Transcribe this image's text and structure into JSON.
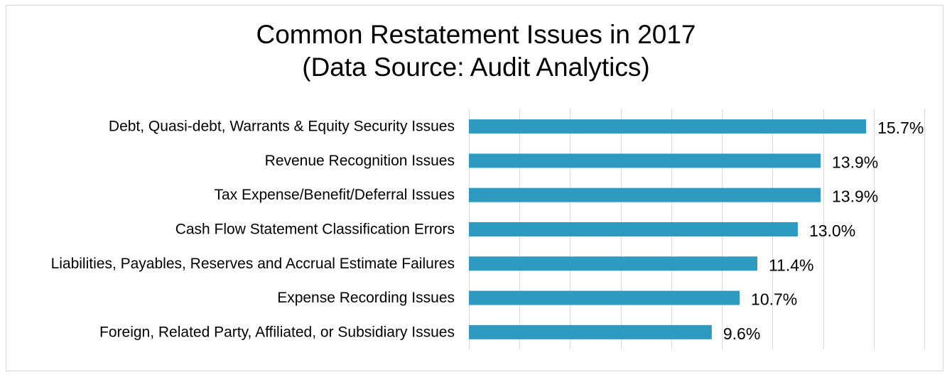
{
  "chart_data": {
    "type": "bar",
    "orientation": "horizontal",
    "title": "Common Restatement Issues in 2017",
    "subtitle": "(Data Source: Audit Analytics)",
    "categories": [
      "Debt, Quasi-debt, Warrants & Equity Security Issues",
      "Revenue Recognition Issues",
      "Tax Expense/Benefit/Deferral Issues",
      "Cash Flow Statement Classification Errors",
      "Liabilities, Payables, Reserves and Accrual Estimate Failures",
      "Expense Recording Issues",
      "Foreign, Related Party, Affiliated, or Subsidiary Issues"
    ],
    "values": [
      15.7,
      13.9,
      13.9,
      13.0,
      11.4,
      10.7,
      9.6
    ],
    "data_labels": [
      "15.7%",
      "13.9%",
      "13.9%",
      "13.0%",
      "11.4%",
      "10.7%",
      "9.6%"
    ],
    "unit": "%",
    "xlim": [
      0,
      18
    ],
    "x_gridline_step": 2,
    "grid": true,
    "axis_labels_shown": false,
    "legend": "none",
    "bar_color": "#2e9ac0",
    "gridline_color": "#d9d9d9"
  }
}
